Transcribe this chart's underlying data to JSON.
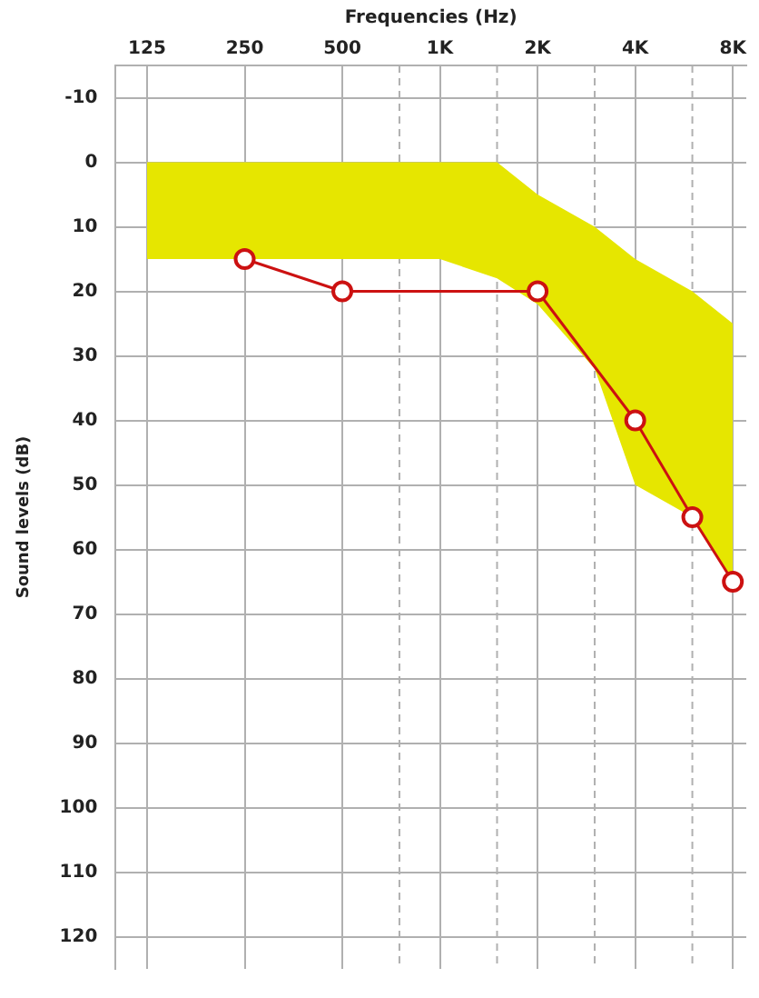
{
  "chart_data": {
    "type": "line",
    "xlabel": "Frequencies (Hz)",
    "ylabel": "Sound levels (dB)",
    "log": "x",
    "xlim": [
      100,
      8800
    ],
    "ylim": [
      125,
      -15
    ],
    "xticks": [
      125,
      250,
      500,
      {
        "value": 750,
        "label": null
      },
      {
        "value": 1000,
        "label": "1K"
      },
      {
        "value": 1500,
        "label": null
      },
      {
        "value": 2000,
        "label": "2K"
      },
      {
        "value": 3000,
        "label": null
      },
      {
        "value": 4000,
        "label": "4K"
      },
      {
        "value": 6000,
        "label": null
      },
      {
        "value": 8000,
        "label": "8K"
      }
    ],
    "yticks": [
      -10,
      0,
      10,
      20,
      30,
      40,
      50,
      60,
      70,
      80,
      90,
      100,
      110,
      120
    ],
    "grid": true,
    "legend": false,
    "marker": "circle",
    "line_style": "solid",
    "series": [
      {
        "type": "area",
        "marker": "none",
        "color": "#e6e600",
        "x": [
          125,
          1000,
          1500,
          2000,
          3000,
          4000,
          6000,
          8000
        ],
        "values": [
          null,
          null,
          null,
          null,
          null,
          null,
          null,
          null
        ],
        "lower": [
          0,
          0,
          0,
          5,
          10,
          15,
          20,
          25
        ],
        "upper": [
          15,
          15,
          18,
          22,
          32,
          50,
          55,
          65
        ]
      },
      {
        "type": "line",
        "color": "#cc1111",
        "x": [
          250,
          500,
          2000,
          4000,
          6000,
          8000
        ],
        "values": [
          15,
          20,
          20,
          40,
          55,
          65
        ]
      }
    ]
  }
}
